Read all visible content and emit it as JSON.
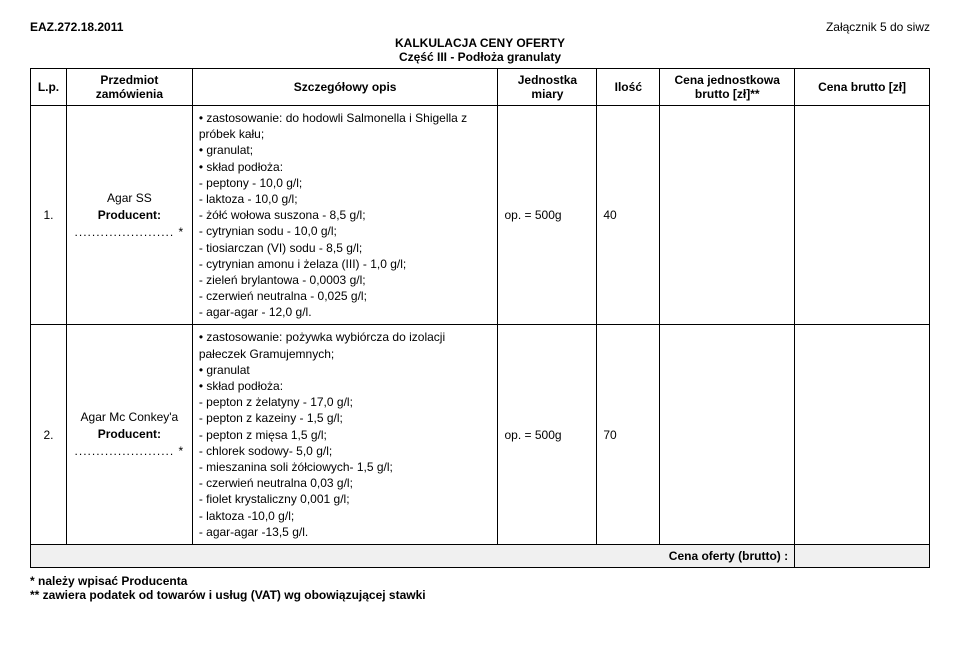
{
  "header": {
    "doc_id": "EAZ.272.18.2011",
    "attachment": "Załącznik 5 do siwz",
    "title_line1": "KALKULACJA CENY OFERTY",
    "title_line2": "Część III - Podłoża granulaty"
  },
  "columns": {
    "lp": "L.p.",
    "subject": "Przedmiot zamówienia",
    "desc": "Szczegółowy opis",
    "unit": "Jednostka miary",
    "qty": "Ilość",
    "unit_price": "Cena jednostkowa brutto [zł]**",
    "total_price": "Cena brutto [zł]"
  },
  "rows": [
    {
      "lp": "1.",
      "subject_name": "Agar SS",
      "producer_label": "Producent:",
      "dots": "....................... *",
      "desc_lines": [
        "• zastosowanie: do hodowli Salmonella i Shigella z próbek kału;",
        "• granulat;",
        "• skład podłoża:",
        "- peptony - 10,0 g/l;",
        "- laktoza - 10,0 g/l;",
        "- żółć wołowa suszona - 8,5 g/l;",
        "- cytrynian sodu - 10,0 g/l;",
        "- tiosiarczan (VI) sodu - 8,5 g/l;",
        "- cytrynian amonu i żelaza (III) - 1,0 g/l;",
        "- zieleń brylantowa - 0,0003 g/l;",
        "- czerwień neutralna - 0,025 g/l;",
        "- agar-agar - 12,0 g/l."
      ],
      "unit": "op. = 500g",
      "qty": "40"
    },
    {
      "lp": "2.",
      "subject_name": "Agar Mc Conkey'a",
      "producer_label": "Producent:",
      "dots": "....................... *",
      "desc_lines": [
        "• zastosowanie: pożywka wybiórcza do izolacji pałeczek Gramujemnych;",
        "• granulat",
        "• skład podłoża:",
        "- pepton z żelatyny - 17,0 g/l;",
        "- pepton z kazeiny - 1,5 g/l;",
        "- pepton z mięsa 1,5 g/l;",
        "- chlorek sodowy- 5,0 g/l;",
        "- mieszanina soli żółciowych- 1,5 g/l;",
        "- czerwień neutralna 0,03 g/l;",
        "- fiolet krystaliczny 0,001 g/l;",
        "- laktoza -10,0 g/l;",
        "- agar-agar -13,5 g/l."
      ],
      "unit": "op. = 500g",
      "qty": "70"
    }
  ],
  "total": {
    "label": "Cena oferty (brutto) :"
  },
  "footnotes": {
    "line1": "* należy wpisać Producenta",
    "line2": "** zawiera podatek od towarów i usług (VAT) wg obowiązującej stawki"
  }
}
